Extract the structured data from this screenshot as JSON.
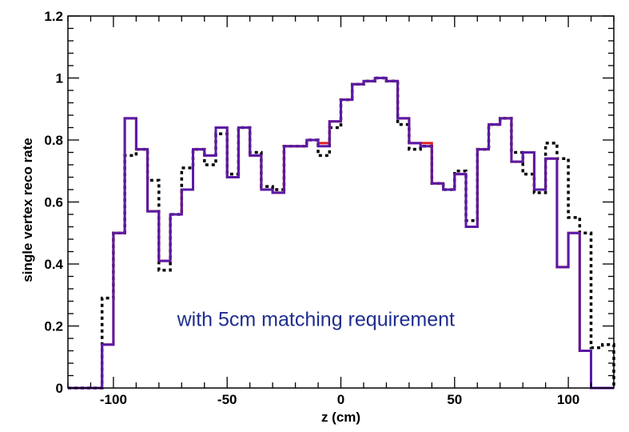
{
  "chart_data": {
    "type": "line",
    "title": "",
    "xlabel": "z (cm)",
    "ylabel": "single vertex reco rate",
    "xlim": [
      -120,
      120
    ],
    "ylim": [
      0,
      1.2
    ],
    "xticks": [
      -100,
      -50,
      0,
      50,
      100
    ],
    "xtick_labels": [
      "-100",
      "-50",
      "0",
      "50",
      "100"
    ],
    "yticks": [
      0,
      0.2,
      0.4,
      0.6,
      0.8,
      1,
      1.2
    ],
    "ytick_labels": [
      "0",
      "0.2",
      "0.4",
      "0.6",
      "0.8",
      "1",
      "1.2"
    ],
    "grid": false,
    "annotation": "with 5cm matching requirement",
    "colors": {
      "annotation": "#1f2e8f",
      "series_solid": "#5a1aa6",
      "series_red": "#e02020",
      "series_dotted": "#000000"
    },
    "bin_edges": [
      -120,
      -115,
      -110,
      -105,
      -100,
      -95,
      -90,
      -85,
      -80,
      -75,
      -70,
      -65,
      -60,
      -55,
      -50,
      -45,
      -40,
      -35,
      -30,
      -25,
      -20,
      -15,
      -10,
      -5,
      0,
      5,
      10,
      15,
      20,
      25,
      30,
      35,
      40,
      45,
      50,
      55,
      60,
      65,
      70,
      75,
      80,
      85,
      90,
      95,
      100,
      105,
      110,
      115,
      120
    ],
    "series": [
      {
        "style": "dotted",
        "values": [
          0,
          0,
          0,
          0.29,
          0.5,
          0.75,
          0.77,
          0.67,
          0.38,
          0.56,
          0.71,
          0.77,
          0.72,
          0.82,
          0.69,
          0.84,
          0.76,
          0.65,
          0.64,
          0.78,
          0.78,
          0.8,
          0.75,
          0.84,
          0.93,
          0.98,
          0.99,
          1.0,
          0.99,
          0.85,
          0.77,
          0.78,
          0.66,
          0.64,
          0.7,
          0.54,
          0.77,
          0.85,
          0.87,
          0.76,
          0.69,
          0.63,
          0.79,
          0.74,
          0.55,
          0.5,
          0.13,
          0.14,
          0
        ]
      },
      {
        "style": "red-solid",
        "values": [
          0,
          0,
          0,
          0.14,
          0.5,
          0.87,
          0.77,
          0.57,
          0.41,
          0.56,
          0.64,
          0.77,
          0.75,
          0.84,
          0.68,
          0.84,
          0.75,
          0.64,
          0.63,
          0.78,
          0.78,
          0.8,
          0.79,
          0.86,
          0.93,
          0.98,
          0.99,
          1.0,
          0.99,
          0.87,
          0.79,
          0.79,
          0.66,
          0.64,
          0.69,
          0.52,
          0.77,
          0.85,
          0.87,
          0.73,
          0.76,
          0.64,
          0.74,
          0.39,
          0.5,
          0.12,
          0,
          0,
          0
        ]
      },
      {
        "style": "purple-solid",
        "values": [
          0,
          0,
          0,
          0.14,
          0.5,
          0.87,
          0.77,
          0.57,
          0.41,
          0.56,
          0.64,
          0.77,
          0.75,
          0.84,
          0.68,
          0.84,
          0.75,
          0.64,
          0.63,
          0.78,
          0.78,
          0.8,
          0.78,
          0.86,
          0.93,
          0.98,
          0.99,
          1.0,
          0.99,
          0.87,
          0.79,
          0.78,
          0.66,
          0.64,
          0.69,
          0.52,
          0.77,
          0.85,
          0.87,
          0.73,
          0.76,
          0.64,
          0.74,
          0.39,
          0.5,
          0.12,
          0,
          0,
          0
        ]
      }
    ]
  }
}
